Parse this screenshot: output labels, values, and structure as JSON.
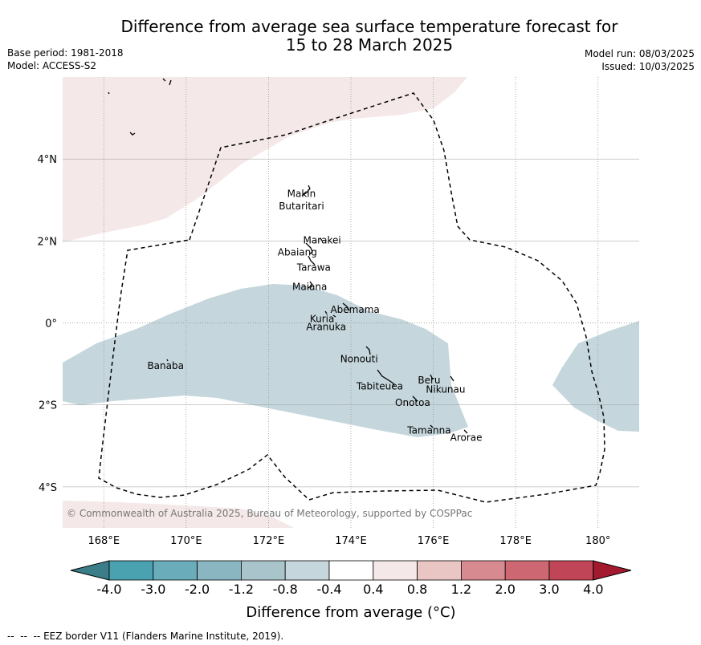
{
  "title": {
    "line1": "Difference from average sea surface temperature forecast for",
    "line2": "15 to 28 March 2025"
  },
  "meta": {
    "base_period": "Base period: 1981-2018",
    "model": "Model: ACCESS-S2",
    "model_run": "Model run: 08/03/2025",
    "issued": "Issued: 10/03/2025"
  },
  "map": {
    "lon_range": [
      167,
      181
    ],
    "lat_range": [
      -5,
      6
    ],
    "x_ticks": [
      "168°E",
      "170°E",
      "172°E",
      "174°E",
      "176°E",
      "178°E",
      "180°"
    ],
    "y_ticks": [
      "4°N",
      "2°N",
      "0°",
      "2°S",
      "4°S"
    ],
    "places": [
      {
        "name": "Makin",
        "lon": 172.8,
        "lat": 3.15
      },
      {
        "name": "Butaritari",
        "lon": 172.8,
        "lat": 2.85
      },
      {
        "name": "Marakei",
        "lon": 173.3,
        "lat": 2.02
      },
      {
        "name": "Abaiang",
        "lon": 172.7,
        "lat": 1.72
      },
      {
        "name": "Tarawa",
        "lon": 173.1,
        "lat": 1.35
      },
      {
        "name": "Maiana",
        "lon": 173.0,
        "lat": 0.88
      },
      {
        "name": "Abemama",
        "lon": 174.1,
        "lat": 0.32
      },
      {
        "name": "Kuria",
        "lon": 173.3,
        "lat": 0.1
      },
      {
        "name": "Aranuka",
        "lon": 173.4,
        "lat": -0.1
      },
      {
        "name": "Nonouti",
        "lon": 174.2,
        "lat": -0.88
      },
      {
        "name": "Banaba",
        "lon": 169.5,
        "lat": -1.05
      },
      {
        "name": "Beru",
        "lon": 175.9,
        "lat": -1.4
      },
      {
        "name": "Nikunau",
        "lon": 176.3,
        "lat": -1.62
      },
      {
        "name": "Tabiteuea",
        "lon": 174.7,
        "lat": -1.55
      },
      {
        "name": "Onotoa",
        "lon": 175.5,
        "lat": -1.95
      },
      {
        "name": "Tamanna",
        "lon": 175.9,
        "lat": -2.62
      },
      {
        "name": "Arorae",
        "lon": 176.8,
        "lat": -2.8
      }
    ],
    "colors": {
      "warm_region": "#f4e8e8",
      "cool_region": "#c5d6dc",
      "grid": "#999999",
      "eez_border": "#000000"
    },
    "copyright": "© Commonwealth of Australia 2025, Bureau of Meteorology, supported by COSPPac"
  },
  "colorbar": {
    "labels": [
      "-4.0",
      "-3.0",
      "-2.0",
      "-1.2",
      "-0.8",
      "-0.4",
      "0.4",
      "0.8",
      "1.2",
      "2.0",
      "3.0",
      "4.0"
    ],
    "colors": [
      "#3b7d89",
      "#4aa1b0",
      "#6aacba",
      "#89b6c1",
      "#a9c5cb",
      "#c5d6dc",
      "#ffffff",
      "#f4e8e8",
      "#e9c5c3",
      "#d88a91",
      "#cd6872",
      "#c04657",
      "#a3192d"
    ],
    "title": "Difference from average (°C)"
  },
  "footer": {
    "legend_text": "EEZ border V11 (Flanders Marine Institute, 2019)."
  }
}
